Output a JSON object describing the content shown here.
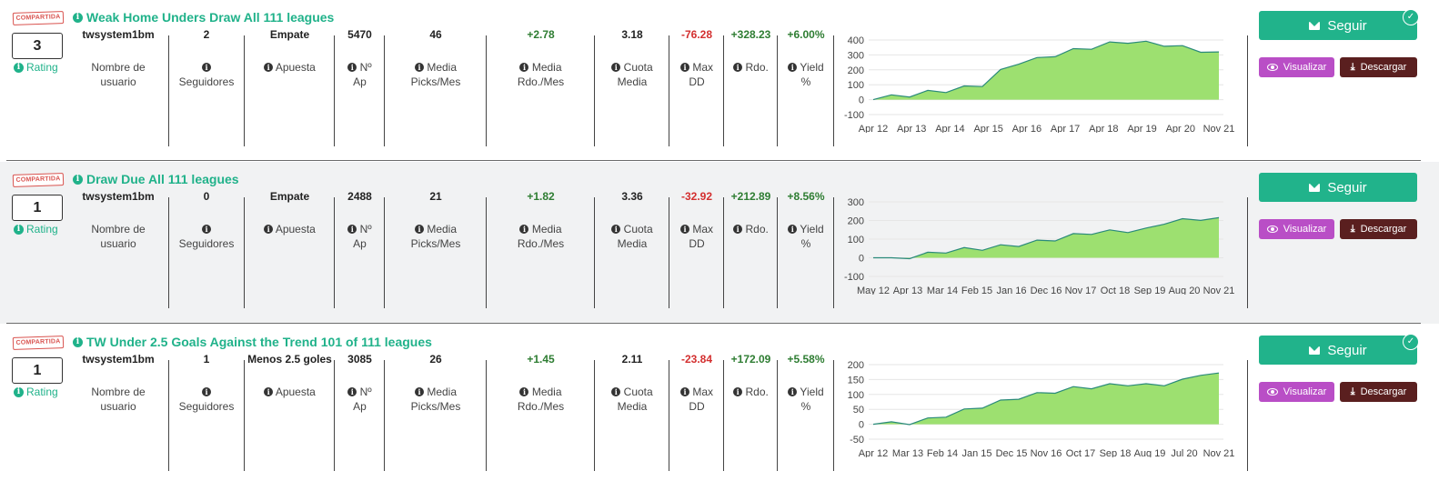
{
  "colors": {
    "accent": "#21b38b",
    "negative": "#d32f2f",
    "positive": "#2e7d32",
    "view": "#b94ec6",
    "download": "#5a1f1f"
  },
  "labels": {
    "badge": "COMPARTIDA",
    "rating": "Rating",
    "username": "Nombre de usuario",
    "followers": "Seguidores",
    "bet": "Apuesta",
    "n_ap": "Nº Ap",
    "picks": "Media Picks/Mes",
    "rdo_mes": "Media Rdo./Mes",
    "cuota": "Cuota Media",
    "maxdd": "Max DD",
    "rdo": "Rdo.",
    "yield": "Yield %",
    "follow": "Seguir",
    "view": "Visualizar",
    "download": "Descargar"
  },
  "systems": [
    {
      "title": "Weak Home Unders Draw All 111 leagues",
      "rating": "3",
      "username": "twsystem1bm",
      "followers": "2",
      "bet": "Empate",
      "n_ap": "5470",
      "picks": "46",
      "rdo_mes": "+2.78",
      "cuota": "3.18",
      "maxdd": "-76.28",
      "rdo": "+328.23",
      "yield": "+6.00%",
      "followed": true,
      "chart_data": {
        "type": "area",
        "x": [
          "Apr 12",
          "Apr 13",
          "Apr 14",
          "Apr 15",
          "Apr 16",
          "Apr 17",
          "Apr 18",
          "Apr 19",
          "Apr 20",
          "Nov 21"
        ],
        "y_ticks": [
          "400",
          "300",
          "200",
          "100",
          "0",
          "-100"
        ],
        "ylim": [
          -100,
          400
        ],
        "points": [
          0,
          20,
          30,
          50,
          60,
          80,
          100,
          190,
          250,
          270,
          300,
          330,
          350,
          375,
          390,
          380,
          370,
          350,
          330,
          320
        ]
      }
    },
    {
      "title": "Draw Due All 111 leagues",
      "rating": "1",
      "username": "twsystem1bm",
      "followers": "0",
      "bet": "Empate",
      "n_ap": "2488",
      "picks": "21",
      "rdo_mes": "+1.82",
      "cuota": "3.36",
      "maxdd": "-32.92",
      "rdo": "+212.89",
      "yield": "+8.56%",
      "followed": false,
      "chart_data": {
        "type": "area",
        "x": [
          "May 12",
          "Apr 13",
          "Mar 14",
          "Feb 15",
          "Jan 16",
          "Dec 16",
          "Nov 17",
          "Oct 18",
          "Sep 19",
          "Aug 20",
          "Nov 21"
        ],
        "y_ticks": [
          "300",
          "200",
          "100",
          "0",
          "-100"
        ],
        "ylim": [
          -100,
          300
        ],
        "points": [
          0,
          -10,
          5,
          20,
          35,
          45,
          50,
          60,
          70,
          85,
          100,
          120,
          135,
          140,
          145,
          150,
          190,
          200,
          210,
          215
        ]
      }
    },
    {
      "title": "TW Under 2.5 Goals Against the Trend 101 of 111 leagues",
      "rating": "1",
      "username": "twsystem1bm",
      "followers": "1",
      "bet": "Menos 2.5 goles",
      "n_ap": "3085",
      "picks": "26",
      "rdo_mes": "+1.45",
      "cuota": "2.11",
      "maxdd": "-23.84",
      "rdo": "+172.09",
      "yield": "+5.58%",
      "followed": true,
      "chart_data": {
        "type": "area",
        "x": [
          "Apr 12",
          "Mar 13",
          "Feb 14",
          "Jan 15",
          "Dec 15",
          "Nov 16",
          "Oct 17",
          "Sep 18",
          "Aug 19",
          "Jul 20",
          "Nov 21"
        ],
        "y_ticks": [
          "200",
          "150",
          "100",
          "50",
          "0",
          "-50"
        ],
        "ylim": [
          -50,
          200
        ],
        "points": [
          0,
          2,
          5,
          15,
          30,
          45,
          60,
          75,
          90,
          100,
          110,
          120,
          125,
          130,
          135,
          130,
          135,
          145,
          170,
          172
        ]
      }
    }
  ]
}
